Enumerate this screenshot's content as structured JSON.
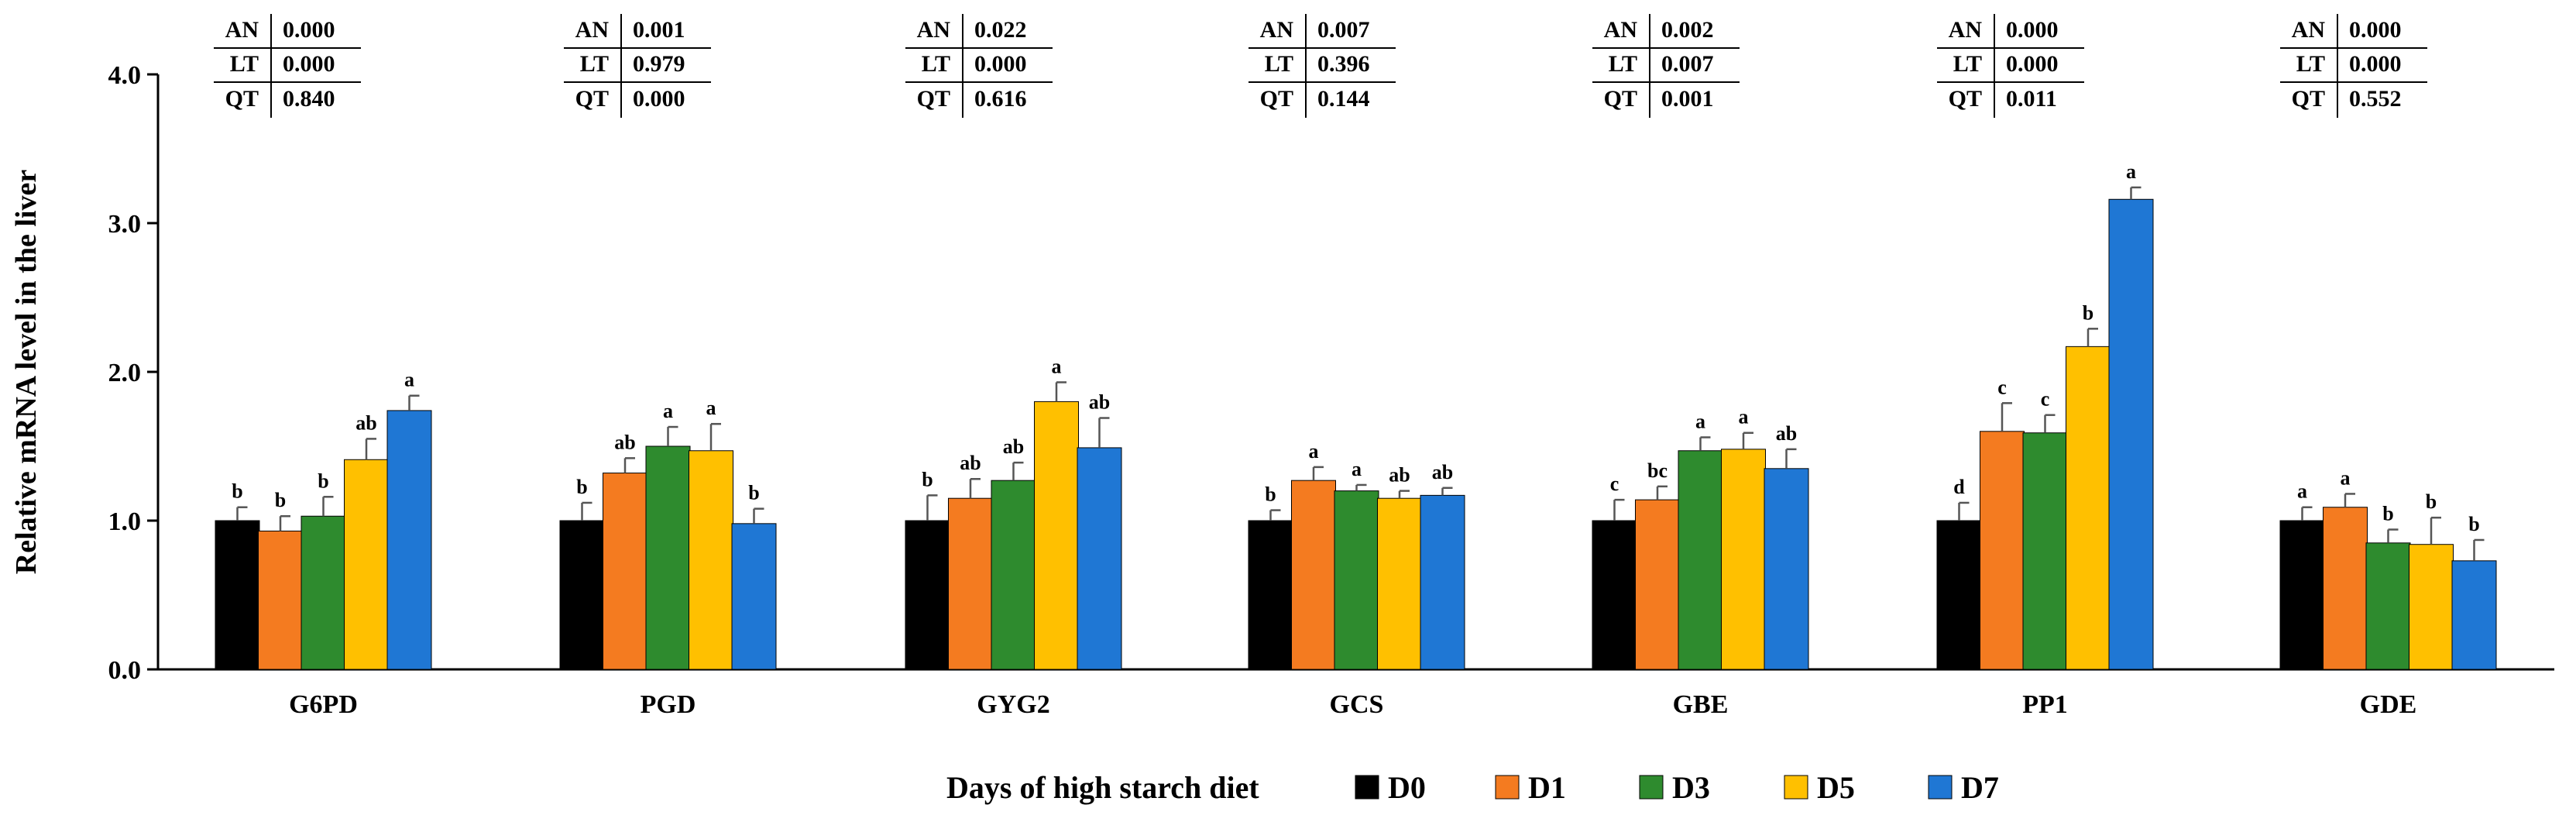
{
  "chart_data": {
    "type": "bar",
    "ylabel": "Relative mRNA level in the liver",
    "ylim": [
      0,
      4
    ],
    "yticks": [
      "0.0",
      "1.0",
      "2.0",
      "3.0",
      "4.0"
    ],
    "categories": [
      "G6PD",
      "PGD",
      "GYG2",
      "GCS",
      "GBE",
      "PP1",
      "GDE"
    ],
    "legend": {
      "title": "Days of high starch diet",
      "position": "bottom"
    },
    "series": [
      {
        "name": "D0",
        "color": "#000000",
        "values": [
          1.0,
          1.0,
          1.0,
          1.0,
          1.0,
          1.0,
          1.0
        ],
        "errors": [
          0.09,
          0.12,
          0.17,
          0.07,
          0.14,
          0.12,
          0.09
        ],
        "letters": [
          "b",
          "b",
          "b",
          "b",
          "c",
          "d",
          "a"
        ]
      },
      {
        "name": "D1",
        "color": "#f47b20",
        "values": [
          0.93,
          1.32,
          1.15,
          1.27,
          1.14,
          1.6,
          1.09
        ],
        "errors": [
          0.1,
          0.1,
          0.13,
          0.09,
          0.09,
          0.19,
          0.09
        ],
        "letters": [
          "b",
          "ab",
          "ab",
          "a",
          "bc",
          "c",
          "a"
        ]
      },
      {
        "name": "D3",
        "color": "#2e8b2e",
        "values": [
          1.03,
          1.5,
          1.27,
          1.2,
          1.47,
          1.59,
          0.85
        ],
        "errors": [
          0.13,
          0.13,
          0.12,
          0.04,
          0.09,
          0.12,
          0.09
        ],
        "letters": [
          "b",
          "a",
          "ab",
          "a",
          "a",
          "c",
          "b"
        ]
      },
      {
        "name": "D5",
        "color": "#ffc000",
        "values": [
          1.41,
          1.47,
          1.8,
          1.15,
          1.48,
          2.17,
          0.84
        ],
        "errors": [
          0.14,
          0.18,
          0.13,
          0.05,
          0.11,
          0.12,
          0.18
        ],
        "letters": [
          "ab",
          "a",
          "a",
          "ab",
          "a",
          "b",
          "b"
        ]
      },
      {
        "name": "D7",
        "color": "#1f77d4",
        "values": [
          1.74,
          0.98,
          1.49,
          1.17,
          1.35,
          3.16,
          0.73
        ],
        "errors": [
          0.1,
          0.1,
          0.2,
          0.05,
          0.13,
          0.08,
          0.14
        ],
        "letters": [
          "a",
          "b",
          "ab",
          "ab",
          "ab",
          "a",
          "b"
        ]
      }
    ],
    "stats_tables": [
      {
        "gene": "G6PD",
        "rows": [
          [
            "AN",
            "0.000"
          ],
          [
            "LT",
            "0.000"
          ],
          [
            "QT",
            "0.840"
          ]
        ]
      },
      {
        "gene": "PGD",
        "rows": [
          [
            "AN",
            "0.001"
          ],
          [
            "LT",
            "0.979"
          ],
          [
            "QT",
            "0.000"
          ]
        ]
      },
      {
        "gene": "GYG2",
        "rows": [
          [
            "AN",
            "0.022"
          ],
          [
            "LT",
            "0.000"
          ],
          [
            "QT",
            "0.616"
          ]
        ]
      },
      {
        "gene": "GCS",
        "rows": [
          [
            "AN",
            "0.007"
          ],
          [
            "LT",
            "0.396"
          ],
          [
            "QT",
            "0.144"
          ]
        ]
      },
      {
        "gene": "GBE",
        "rows": [
          [
            "AN",
            "0.002"
          ],
          [
            "LT",
            "0.007"
          ],
          [
            "QT",
            "0.001"
          ]
        ]
      },
      {
        "gene": "PP1",
        "rows": [
          [
            "AN",
            "0.000"
          ],
          [
            "LT",
            "0.000"
          ],
          [
            "QT",
            "0.011"
          ]
        ]
      },
      {
        "gene": "GDE",
        "rows": [
          [
            "AN",
            "0.000"
          ],
          [
            "LT",
            "0.000"
          ],
          [
            "QT",
            "0.552"
          ]
        ]
      }
    ]
  }
}
